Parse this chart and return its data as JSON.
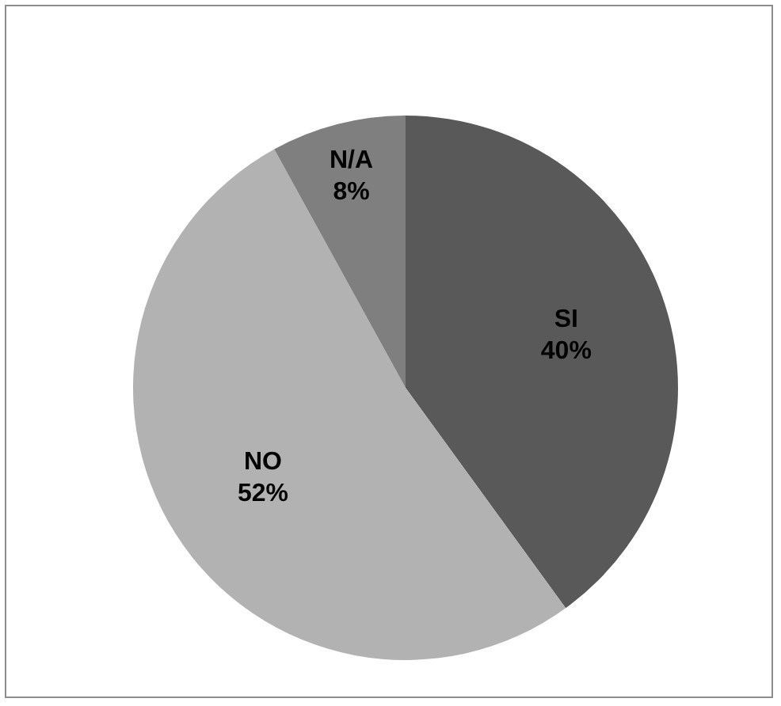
{
  "chart_data": {
    "type": "pie",
    "categories": [
      "SI",
      "NO",
      "N/A"
    ],
    "values": [
      40,
      52,
      8
    ],
    "colors": [
      "#595959",
      "#b2b2b2",
      "#7f7f7f"
    ],
    "value_labels": [
      "40%",
      "52%",
      "8%"
    ],
    "legend": false
  }
}
